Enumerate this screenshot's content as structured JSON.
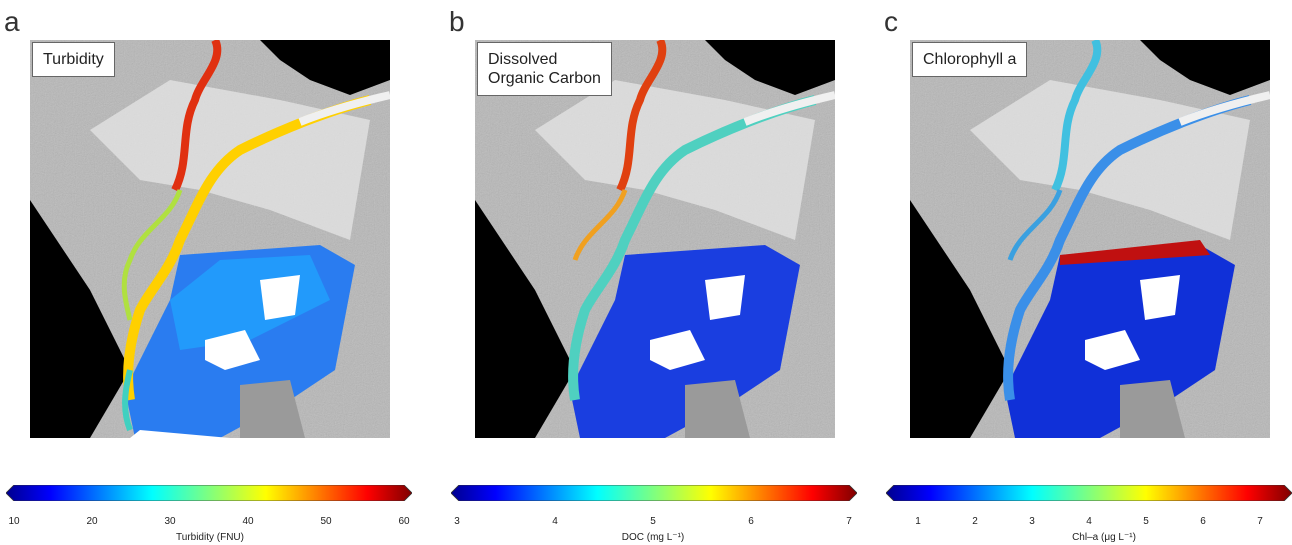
{
  "panels": [
    {
      "letter": "a",
      "label": "Turbidity",
      "colorbar": {
        "title": "Turbidity  (FNU)",
        "ticks": [
          "10",
          "20",
          "30",
          "40",
          "50",
          "60"
        ],
        "tick_values": [
          10,
          20,
          30,
          40,
          50,
          60
        ],
        "min": 10,
        "max": 60
      }
    },
    {
      "letter": "b",
      "label_lines": [
        "Dissolved",
        "Organic Carbon"
      ],
      "colorbar": {
        "title": "DOC  (mg L⁻¹)",
        "ticks": [
          "3",
          "4",
          "5",
          "6",
          "7"
        ],
        "tick_values": [
          3,
          4,
          5,
          6,
          7
        ],
        "min": 3,
        "max": 7
      }
    },
    {
      "letter": "c",
      "label": "Chlorophyll a",
      "colorbar": {
        "title": "Chl–a  (μg L⁻¹)",
        "ticks": [
          "1",
          "2",
          "3",
          "4",
          "5",
          "6",
          "7"
        ],
        "tick_values": [
          1,
          2,
          3,
          4,
          5,
          6,
          7
        ],
        "min": 0.5,
        "max": 7.5
      }
    }
  ],
  "colors": {
    "jet_low": "#00008f",
    "jet_mid": "#7fff7f",
    "jet_high": "#7f0000",
    "land_gray": "#b5b5b5",
    "ocean_black": "#000000"
  }
}
